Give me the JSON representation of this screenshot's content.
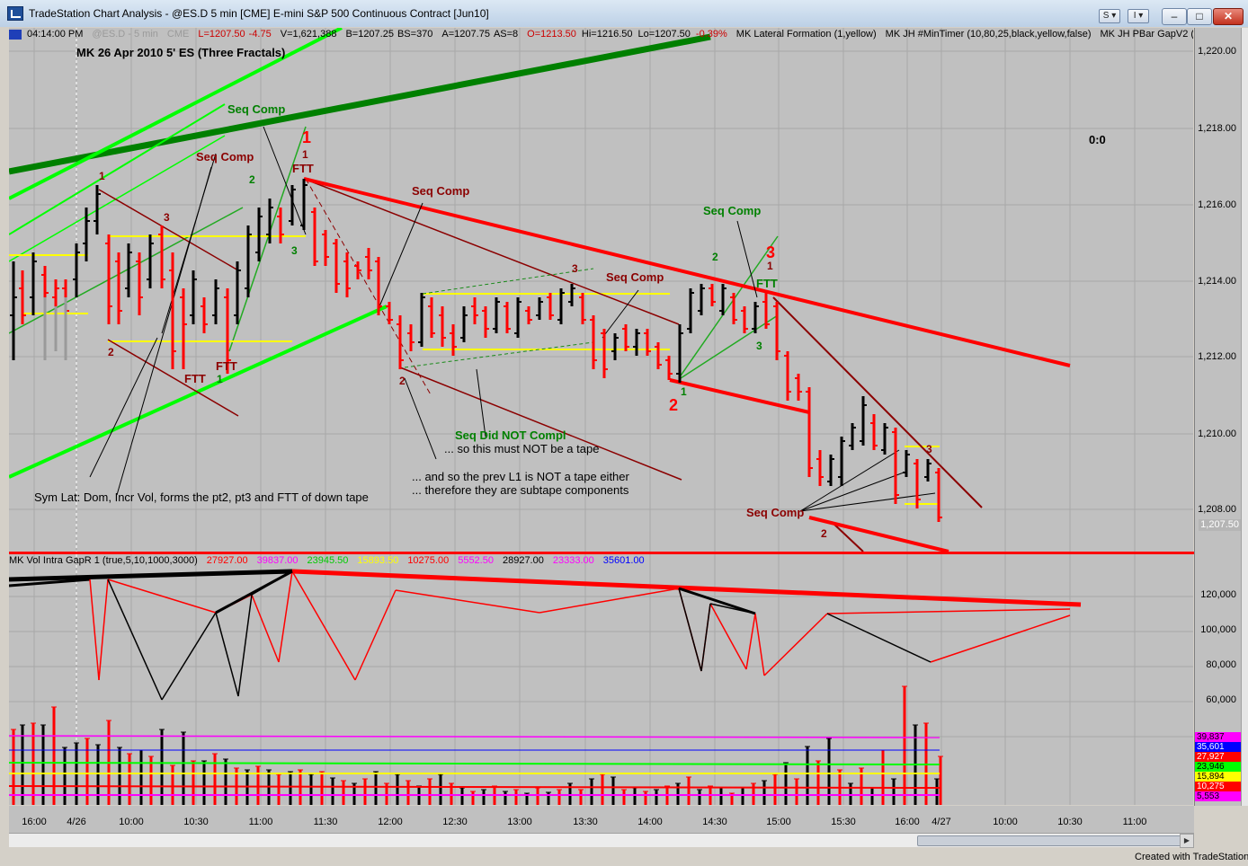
{
  "window": {
    "title": "TradeStation Chart Analysis - @ES.D 5 min [CME] E-mini S&P 500 Continuous Contract [Jun10]",
    "btn_s": "S",
    "btn_i": "I",
    "btn_min": "–",
    "btn_max": "□",
    "btn_close": "✕"
  },
  "status": {
    "time": "04:14:00 PM",
    "symbol": "@ES.D - 5 min",
    "cme": "CME",
    "last": "L=1207.50",
    "change": "-4.75",
    "volume": "V=1,621,388",
    "bid": "B=1207.25",
    "bs": "BS=370",
    "ask": "A=1207.75",
    "as": "AS=8",
    "open": "O=1213.50",
    "high": "Hi=1216.50",
    "low": "Lo=1207.50",
    "pct": "-0.39%",
    "ind1": "MK Lateral Formation (1,yellow)",
    "ind2": "MK JH #MinTimer (10,80,25,black,yellow,false)",
    "ind3": "MK JH PBar GapV2 (40 ..."
  },
  "chart_title": "MK 26 Apr 2010 5' ES (Three Fractals)",
  "score": "0:0",
  "price_axis": [
    "1,220.00",
    "1,218.00",
    "1,216.00",
    "1,214.00",
    "1,212.00",
    "1,210.00",
    "1,208.00"
  ],
  "last_price_tag": "1,207.50",
  "volume_axis": [
    "120,000",
    "100,000",
    "80,000",
    "60,000"
  ],
  "volume_badges": [
    {
      "text": "39,837",
      "color": "#ff00ff"
    },
    {
      "text": "35,601",
      "color": "#0000ff"
    },
    {
      "text": "27,927",
      "color": "#ff0000"
    },
    {
      "text": "23,946",
      "color": "#00ff00"
    },
    {
      "text": "15,894",
      "color": "#ffff00"
    },
    {
      "text": "10,275",
      "color": "#ff0000"
    },
    {
      "text": "5,553",
      "color": "#ff00ff"
    }
  ],
  "vol_header": {
    "name": "MK Vol Intra GapR 1 (true,5,10,1000,3000)",
    "values": [
      {
        "text": "27927.00",
        "color": "#ff0000"
      },
      {
        "text": "39837.00",
        "color": "#ff00ff"
      },
      {
        "text": "23945.50",
        "color": "#00cc00"
      },
      {
        "text": "15893.50",
        "color": "#ffff00"
      },
      {
        "text": "10275.00",
        "color": "#ff0000"
      },
      {
        "text": "5552.50",
        "color": "#ff00ff"
      },
      {
        "text": "28927.00",
        "color": "#000000"
      },
      {
        "text": "23333.00",
        "color": "#ff00ff"
      },
      {
        "text": "35601.00",
        "color": "#0000ff"
      }
    ]
  },
  "time_axis": [
    "16:00",
    "4/26",
    "10:00",
    "10:30",
    "11:00",
    "11:30",
    "12:00",
    "12:30",
    "13:00",
    "13:30",
    "14:00",
    "14:30",
    "15:00",
    "15:30",
    "16:00",
    "4/27",
    "10:00",
    "10:30",
    "11:00"
  ],
  "annotations": {
    "seq_comp": "Seq Comp",
    "ftt": "FTT",
    "seq_not": "Seq Did NOT Compl",
    "note1": "... so this must NOT be a tape",
    "note2": "... and so the prev L1 is NOT a tape either",
    "note3": "... therefore they are subtape components",
    "sym_lat": "Sym Lat: Dom, Incr Vol, forms the pt2, pt3 and FTT of down tape",
    "n1": "1",
    "n2": "2",
    "n3": "3"
  },
  "footer": "Created with TradeStation",
  "colors": {
    "pane_bg": "#c0c0c0",
    "up_bar": "#000000",
    "down_bar": "#ff0000",
    "trend_red": "#ff0000",
    "trend_dark": "#8b0000",
    "channel_green": "#00ff00",
    "big_green": "#008000",
    "lateral": "#ffff00"
  }
}
